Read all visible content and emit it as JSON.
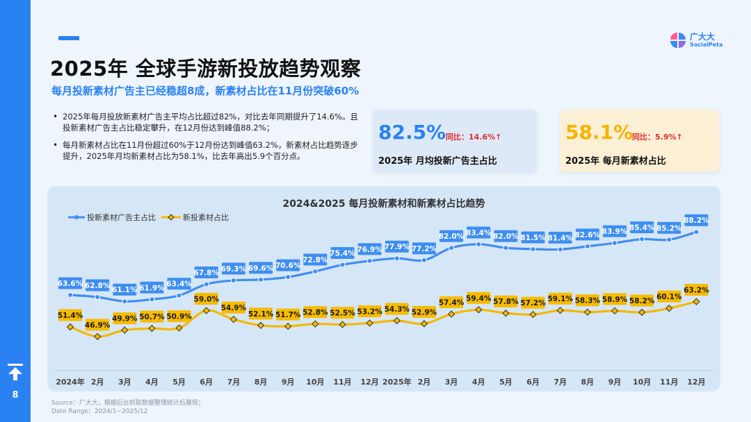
{
  "page": {
    "number": "8"
  },
  "logo": {
    "cn": "广大大",
    "en": "SocialPeta"
  },
  "header": {
    "title": "2025年 全球手游新投放趋势观察",
    "subtitle": "每月投新素材广告主已经稳超8成，新素材占比在11月份突破60%"
  },
  "bullets": [
    "2025年每月投放新素材广告主平均占比超过82%，对比去年同期提升了14.6%。且投新素材广告主占比稳定攀升，在12月份达到峰值88.2%；",
    "每月新素材占比在11月份超过60%于12月份达到峰值63.2%，新素材占比趋势逐步提升，2025年月均新素材占比为58.1%，比去年高出5.9个百分点。"
  ],
  "cards": [
    {
      "value": "82.5%",
      "yoy": "同比：14.6%↑",
      "label": "2025年  月均投新广告主占比",
      "color": "#2a82f2"
    },
    {
      "value": "58.1%",
      "yoy": "同比：5.9%↑",
      "label": "2025年  每月新素材占比",
      "color": "#f5b400"
    }
  ],
  "source": {
    "line1": "Source：广大大，根据后台抓取数据整理统计后展现；",
    "line2": "Date Range：2024/1~2025/12"
  },
  "chart_data": {
    "type": "line",
    "title": "2024&2025  每月投新素材和新素材占比趋势",
    "categories": [
      "2024年",
      "2月",
      "3月",
      "4月",
      "5月",
      "6月",
      "7月",
      "8月",
      "9月",
      "10月",
      "11月",
      "12月",
      "2025年",
      "2月",
      "3月",
      "4月",
      "5月",
      "6月",
      "7月",
      "8月",
      "9月",
      "10月",
      "11月",
      "12月"
    ],
    "series": [
      {
        "name": "投新素材广告主占比",
        "color": "#3f8ef0",
        "values": [
          63.6,
          62.8,
          61.1,
          61.9,
          63.4,
          67.8,
          69.3,
          69.6,
          70.6,
          72.8,
          75.4,
          76.9,
          77.9,
          77.2,
          82.0,
          83.4,
          82.0,
          81.5,
          81.4,
          82.6,
          83.9,
          85.4,
          85.2,
          88.2
        ]
      },
      {
        "name": "新投素材占比",
        "color": "#f5b800",
        "values": [
          51.4,
          46.9,
          49.9,
          50.7,
          50.9,
          59.0,
          54.9,
          52.1,
          51.7,
          52.8,
          52.5,
          53.2,
          54.3,
          52.9,
          57.4,
          59.4,
          57.8,
          57.2,
          59.1,
          58.3,
          58.9,
          58.2,
          60.1,
          63.2
        ]
      }
    ],
    "value_suffix": "%",
    "legend_position": "top-left",
    "grid": false
  }
}
